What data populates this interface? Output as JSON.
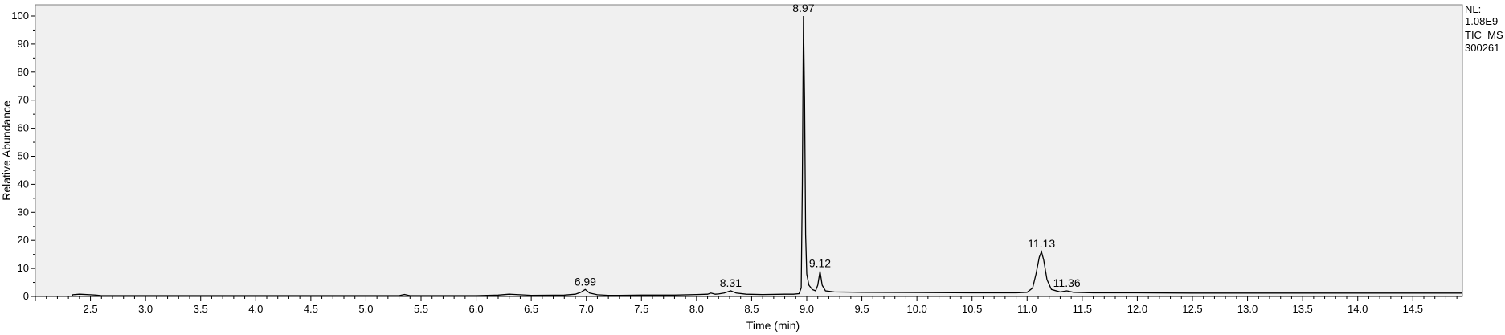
{
  "chart_data": {
    "type": "line",
    "xlabel": "Time (min)",
    "ylabel": "Relative Abundance",
    "xlim": [
      2.0,
      14.95
    ],
    "ylim": [
      0,
      100
    ],
    "x_ticks": [
      "2.5",
      "3.0",
      "3.5",
      "4.0",
      "4.5",
      "5.0",
      "5.5",
      "6.0",
      "6.5",
      "7.0",
      "7.5",
      "8.0",
      "8.5",
      "9.0",
      "9.5",
      "10.0",
      "10.5",
      "11.0",
      "11.5",
      "12.0",
      "12.5",
      "13.0",
      "13.5",
      "14.0",
      "14.5"
    ],
    "y_ticks": [
      "0",
      "10",
      "20",
      "30",
      "40",
      "50",
      "60",
      "70",
      "80",
      "90",
      "100"
    ],
    "peak_labels": [
      {
        "text": "6.99",
        "x": 6.99,
        "y": 2.5
      },
      {
        "text": "8.31",
        "x": 8.31,
        "y": 2.0
      },
      {
        "text": "8.97",
        "x": 8.97,
        "y": 100
      },
      {
        "text": "9.12",
        "x": 9.12,
        "y": 9
      },
      {
        "text": "11.13",
        "x": 11.13,
        "y": 16
      },
      {
        "text": "11.36",
        "x": 11.36,
        "y": 2
      }
    ],
    "info": {
      "nl_label": "NL:",
      "nl_value": "1.08E9",
      "trace": "TIC  MS",
      "sample": "300261"
    },
    "series": [
      {
        "x": [
          2.33,
          2.34,
          2.4,
          2.5,
          2.55,
          2.6,
          3.0,
          3.5,
          4.0,
          4.5,
          5.0,
          5.3,
          5.35,
          5.4,
          6.0,
          6.2,
          6.3,
          6.4,
          6.5,
          6.8,
          6.9,
          6.95,
          6.99,
          7.03,
          7.1,
          7.2,
          7.3,
          7.5,
          7.8,
          8.0,
          8.1,
          8.13,
          8.17,
          8.2,
          8.25,
          8.31,
          8.36,
          8.45,
          8.6,
          8.8,
          8.88,
          8.93,
          8.95,
          8.96,
          8.97,
          8.98,
          8.99,
          9.0,
          9.02,
          9.05,
          9.08,
          9.1,
          9.12,
          9.14,
          9.17,
          9.25,
          9.5,
          10.0,
          10.5,
          10.9,
          11.0,
          11.05,
          11.08,
          11.11,
          11.13,
          11.15,
          11.18,
          11.22,
          11.3,
          11.36,
          11.42,
          11.6,
          12.0,
          12.5,
          13.0,
          13.5,
          14.0,
          14.5,
          14.95
        ],
        "y": [
          0,
          0.6,
          0.8,
          0.6,
          0.5,
          0.3,
          0.3,
          0.3,
          0.3,
          0.3,
          0.3,
          0.3,
          0.7,
          0.3,
          0.3,
          0.5,
          0.8,
          0.6,
          0.4,
          0.5,
          0.8,
          1.5,
          2.5,
          1.2,
          0.6,
          0.4,
          0.4,
          0.5,
          0.5,
          0.7,
          0.8,
          1.2,
          0.8,
          0.9,
          1.2,
          2.0,
          1.2,
          0.8,
          0.7,
          0.8,
          0.8,
          1.0,
          3,
          40,
          100,
          70,
          22,
          8,
          4,
          2.5,
          2.0,
          4,
          9,
          4,
          2,
          1.6,
          1.5,
          1.4,
          1.3,
          1.3,
          1.5,
          3,
          8,
          14,
          16,
          13,
          6,
          2.5,
          1.6,
          2,
          1.5,
          1.3,
          1.3,
          1.2,
          1.2,
          1.2,
          1.2,
          1.2,
          1.2
        ]
      }
    ]
  }
}
